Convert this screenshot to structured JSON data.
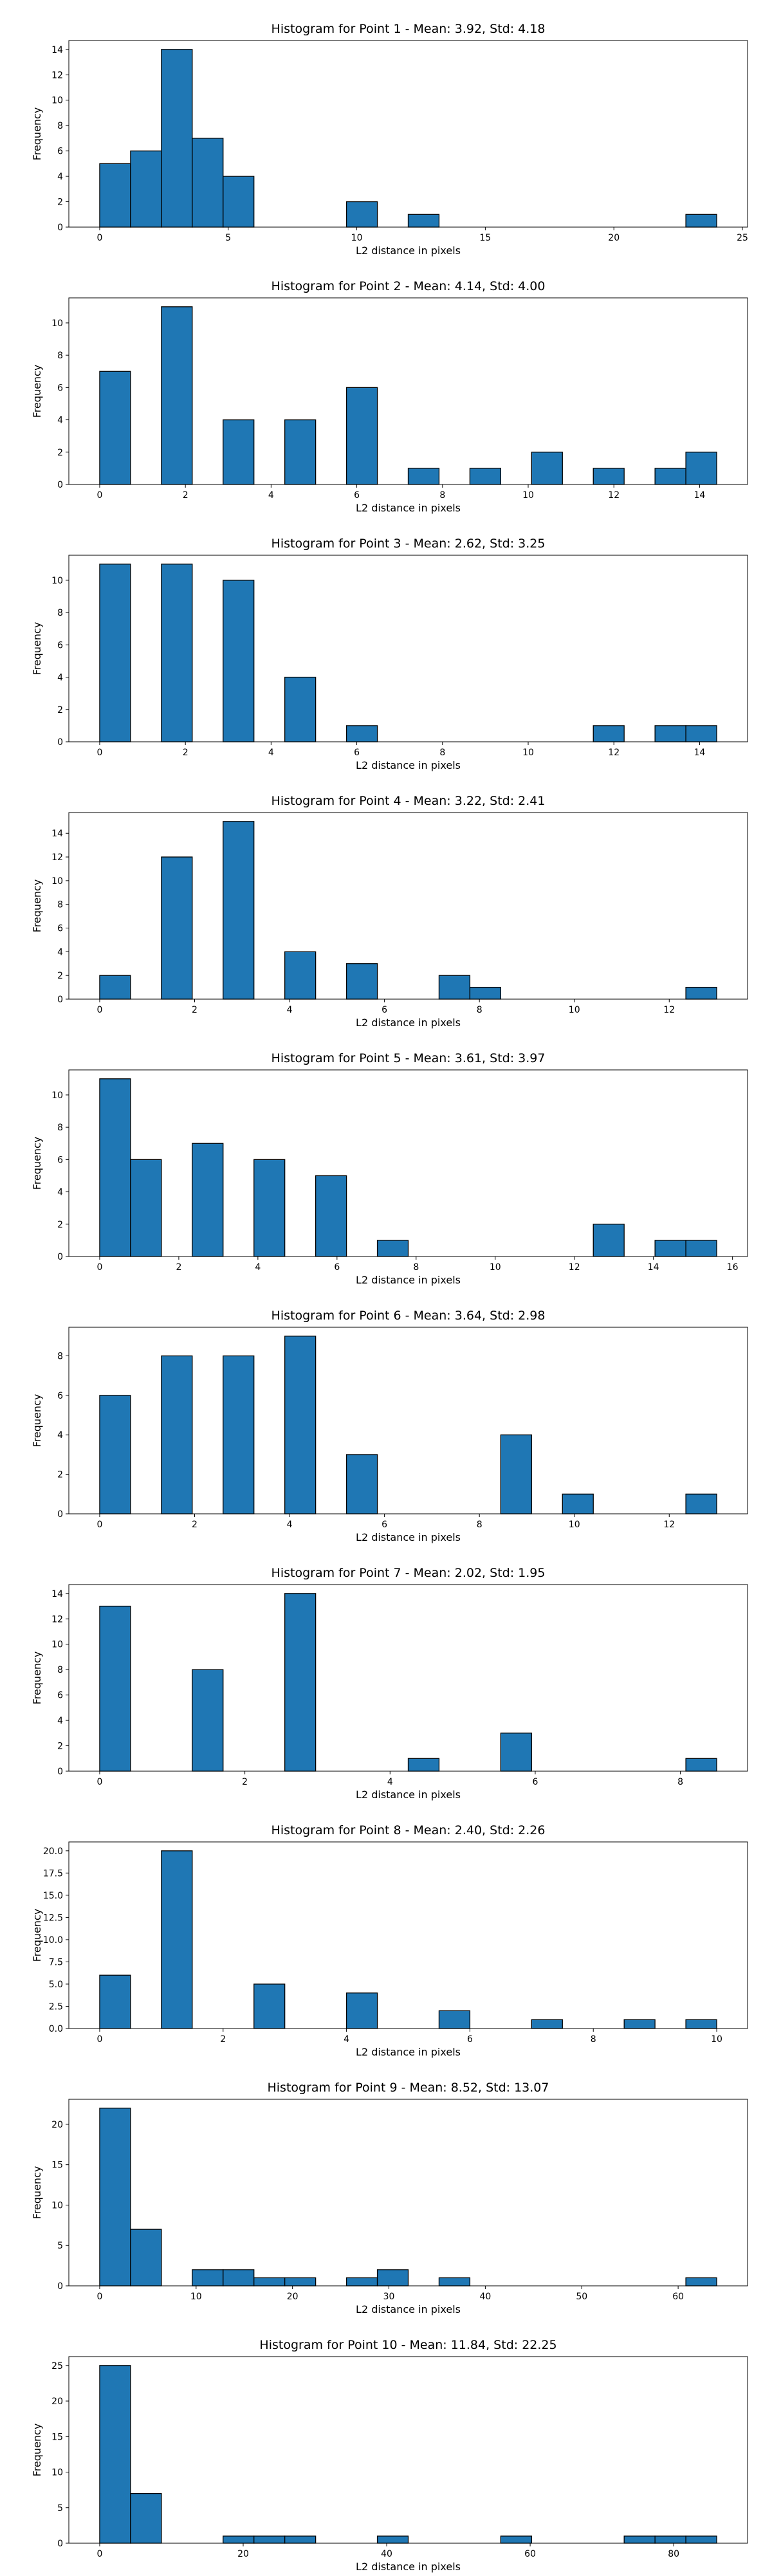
{
  "figure": {
    "background": "#ffffff",
    "bar_color": "#1f77b4",
    "edge_color": "#000000"
  },
  "chart_data": [
    {
      "type": "bar",
      "title": "Histogram for Point 1 - Mean: 3.92, Std: 4.18",
      "xlabel": "L2 distance in pixels",
      "ylabel": "Frequency",
      "xlim": [
        -1.2,
        25.2
      ],
      "ylim": [
        0,
        14.7
      ],
      "xticks": [
        0,
        5,
        10,
        15,
        20,
        25
      ],
      "xtick_labels": [
        "0",
        "5",
        "10",
        "15",
        "20",
        "25"
      ],
      "yticks": [
        0,
        2,
        4,
        6,
        8,
        10,
        12,
        14
      ],
      "ytick_labels": [
        "0",
        "2",
        "4",
        "6",
        "8",
        "10",
        "12",
        "14"
      ],
      "bin_width": 1.2,
      "bin_starts": [
        0,
        1.2,
        2.4,
        3.6,
        4.8,
        9.6,
        12.0,
        22.8
      ],
      "values": [
        5,
        6,
        14,
        7,
        4,
        2,
        1,
        1
      ]
    },
    {
      "type": "bar",
      "title": "Histogram for Point 2 - Mean: 4.14, Std: 4.00",
      "xlabel": "L2 distance in pixels",
      "ylabel": "Frequency",
      "xlim": [
        -0.72,
        15.12
      ],
      "ylim": [
        0,
        11.55
      ],
      "xticks": [
        0,
        2,
        4,
        6,
        8,
        10,
        12,
        14
      ],
      "xtick_labels": [
        "0",
        "2",
        "4",
        "6",
        "8",
        "10",
        "12",
        "14"
      ],
      "yticks": [
        0,
        2,
        4,
        6,
        8,
        10
      ],
      "ytick_labels": [
        "0",
        "2",
        "4",
        "6",
        "8",
        "10"
      ],
      "bin_width": 0.72,
      "bin_starts": [
        0,
        1.44,
        2.88,
        4.32,
        5.76,
        7.2,
        8.64,
        10.08,
        11.52,
        12.96,
        13.68
      ],
      "values": [
        7,
        11,
        4,
        4,
        6,
        1,
        1,
        2,
        1,
        1,
        2
      ]
    },
    {
      "type": "bar",
      "title": "Histogram for Point 3 - Mean: 2.62, Std: 3.25",
      "xlabel": "L2 distance in pixels",
      "ylabel": "Frequency",
      "xlim": [
        -0.72,
        15.12
      ],
      "ylim": [
        0,
        11.55
      ],
      "xticks": [
        0,
        2,
        4,
        6,
        8,
        10,
        12,
        14
      ],
      "xtick_labels": [
        "0",
        "2",
        "4",
        "6",
        "8",
        "10",
        "12",
        "14"
      ],
      "yticks": [
        0,
        2,
        4,
        6,
        8,
        10
      ],
      "ytick_labels": [
        "0",
        "2",
        "4",
        "6",
        "8",
        "10"
      ],
      "bin_width": 0.72,
      "bin_starts": [
        0,
        1.44,
        2.88,
        4.32,
        5.76,
        11.52,
        12.96,
        13.68
      ],
      "values": [
        11,
        11,
        10,
        4,
        1,
        1,
        1,
        1
      ]
    },
    {
      "type": "bar",
      "title": "Histogram for Point 4 - Mean: 3.22, Std: 2.41",
      "xlabel": "L2 distance in pixels",
      "ylabel": "Frequency",
      "xlim": [
        -0.65,
        13.65
      ],
      "ylim": [
        0,
        15.75
      ],
      "xticks": [
        0,
        2,
        4,
        6,
        8,
        10,
        12
      ],
      "xtick_labels": [
        "0",
        "2",
        "4",
        "6",
        "8",
        "10",
        "12"
      ],
      "yticks": [
        0,
        2,
        4,
        6,
        8,
        10,
        12,
        14
      ],
      "ytick_labels": [
        "0",
        "2",
        "4",
        "6",
        "8",
        "10",
        "12",
        "14"
      ],
      "bin_width": 0.65,
      "bin_starts": [
        0,
        1.3,
        2.6,
        3.9,
        5.2,
        7.15,
        7.8,
        12.35
      ],
      "values": [
        2,
        12,
        15,
        4,
        3,
        2,
        1,
        1
      ]
    },
    {
      "type": "bar",
      "title": "Histogram for Point 5 - Mean: 3.61, Std: 3.97",
      "xlabel": "L2 distance in pixels",
      "ylabel": "Frequency",
      "xlim": [
        -0.78,
        16.38
      ],
      "ylim": [
        0,
        11.55
      ],
      "xticks": [
        0,
        2,
        4,
        6,
        8,
        10,
        12,
        14,
        16
      ],
      "xtick_labels": [
        "0",
        "2",
        "4",
        "6",
        "8",
        "10",
        "12",
        "14",
        "16"
      ],
      "yticks": [
        0,
        2,
        4,
        6,
        8,
        10
      ],
      "ytick_labels": [
        "0",
        "2",
        "4",
        "6",
        "8",
        "10"
      ],
      "bin_width": 0.78,
      "bin_starts": [
        0,
        0.78,
        2.34,
        3.9,
        5.46,
        7.02,
        12.48,
        14.04,
        14.82
      ],
      "values": [
        11,
        6,
        7,
        6,
        5,
        1,
        2,
        1,
        1
      ]
    },
    {
      "type": "bar",
      "title": "Histogram for Point 6 - Mean: 3.64, Std: 2.98",
      "xlabel": "L2 distance in pixels",
      "ylabel": "Frequency",
      "xlim": [
        -0.65,
        13.65
      ],
      "ylim": [
        0,
        9.45
      ],
      "xticks": [
        0,
        2,
        4,
        6,
        8,
        10,
        12
      ],
      "xtick_labels": [
        "0",
        "2",
        "4",
        "6",
        "8",
        "10",
        "12"
      ],
      "yticks": [
        0,
        2,
        4,
        6,
        8
      ],
      "ytick_labels": [
        "0",
        "2",
        "4",
        "6",
        "8"
      ],
      "bin_width": 0.65,
      "bin_starts": [
        0,
        1.3,
        2.6,
        3.9,
        5.2,
        8.45,
        9.75,
        12.35
      ],
      "values": [
        6,
        8,
        8,
        9,
        3,
        4,
        1,
        1
      ]
    },
    {
      "type": "bar",
      "title": "Histogram for Point 7 - Mean: 2.02, Std: 1.95",
      "xlabel": "L2 distance in pixels",
      "ylabel": "Frequency",
      "xlim": [
        -0.425,
        8.925
      ],
      "ylim": [
        0,
        14.7
      ],
      "xticks": [
        0,
        2,
        4,
        6,
        8
      ],
      "xtick_labels": [
        "0",
        "2",
        "4",
        "6",
        "8"
      ],
      "yticks": [
        0,
        2,
        4,
        6,
        8,
        10,
        12,
        14
      ],
      "ytick_labels": [
        "0",
        "2",
        "4",
        "6",
        "8",
        "10",
        "12",
        "14"
      ],
      "bin_width": 0.425,
      "bin_starts": [
        0,
        1.275,
        2.55,
        4.25,
        5.525,
        8.075
      ],
      "values": [
        13,
        8,
        14,
        1,
        3,
        1
      ]
    },
    {
      "type": "bar",
      "title": "Histogram for Point 8 - Mean: 2.40, Std: 2.26",
      "xlabel": "L2 distance in pixels",
      "ylabel": "Frequency",
      "xlim": [
        -0.5,
        10.5
      ],
      "ylim": [
        0,
        21.0
      ],
      "xticks": [
        0,
        2,
        4,
        6,
        8,
        10
      ],
      "xtick_labels": [
        "0",
        "2",
        "4",
        "6",
        "8",
        "10"
      ],
      "yticks": [
        0,
        2.5,
        5,
        7.5,
        10,
        12.5,
        15,
        17.5,
        20
      ],
      "ytick_labels": [
        "0.0",
        "2.5",
        "5.0",
        "7.5",
        "10.0",
        "12.5",
        "15.0",
        "17.5",
        "20.0"
      ],
      "bin_width": 0.5,
      "bin_starts": [
        0,
        1.0,
        2.5,
        4.0,
        5.5,
        7.0,
        8.5,
        9.5
      ],
      "values": [
        6,
        20,
        5,
        4,
        2,
        1,
        1,
        1
      ]
    },
    {
      "type": "bar",
      "title": "Histogram for Point 9 - Mean: 8.52, Std: 13.07",
      "xlabel": "L2 distance in pixels",
      "ylabel": "Frequency",
      "xlim": [
        -3.2,
        67.2
      ],
      "ylim": [
        0,
        23.1
      ],
      "xticks": [
        0,
        10,
        20,
        30,
        40,
        50,
        60
      ],
      "xtick_labels": [
        "0",
        "10",
        "20",
        "30",
        "40",
        "50",
        "60"
      ],
      "yticks": [
        0,
        5,
        10,
        15,
        20
      ],
      "ytick_labels": [
        "0",
        "5",
        "10",
        "15",
        "20"
      ],
      "bin_width": 3.2,
      "bin_starts": [
        0,
        3.2,
        9.6,
        12.8,
        16.0,
        19.2,
        25.6,
        28.8,
        35.2,
        60.8
      ],
      "values": [
        22,
        7,
        2,
        2,
        1,
        1,
        1,
        2,
        1,
        1
      ]
    },
    {
      "type": "bar",
      "title": "Histogram for Point 10 - Mean: 11.84, Std: 22.25",
      "xlabel": "L2 distance in pixels",
      "ylabel": "Frequency",
      "xlim": [
        -4.3,
        90.3
      ],
      "ylim": [
        0,
        26.25
      ],
      "xticks": [
        0,
        20,
        40,
        60,
        80
      ],
      "xtick_labels": [
        "0",
        "20",
        "40",
        "60",
        "80"
      ],
      "yticks": [
        0,
        5,
        10,
        15,
        20,
        25
      ],
      "ytick_labels": [
        "0",
        "5",
        "10",
        "15",
        "20",
        "25"
      ],
      "bin_width": 4.3,
      "bin_starts": [
        0,
        4.3,
        17.2,
        21.5,
        25.8,
        38.7,
        55.9,
        73.1,
        77.4,
        81.7
      ],
      "values": [
        25,
        7,
        1,
        1,
        1,
        1,
        1,
        1,
        1,
        1
      ]
    }
  ]
}
